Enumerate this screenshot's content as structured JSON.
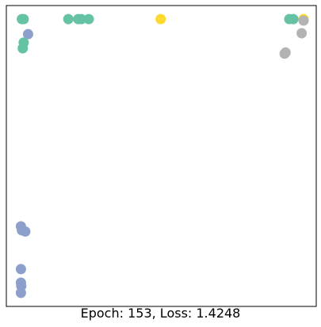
{
  "chart_data": {
    "type": "scatter",
    "caption": "Epoch: 153, Loss: 1.4248",
    "axes_visible": false,
    "grid": false,
    "colors": {
      "teal": "#66c2a5",
      "blue": "#8da0cb",
      "gray": "#b3b3b3",
      "yellow": "#ffd92f"
    },
    "xlim": [
      0,
      100
    ],
    "ylim": [
      0,
      100
    ],
    "points": [
      {
        "x": 5.0,
        "y": 95.5,
        "color": "teal"
      },
      {
        "x": 5.6,
        "y": 95.5,
        "color": "teal"
      },
      {
        "x": 20.0,
        "y": 95.5,
        "color": "teal"
      },
      {
        "x": 23.2,
        "y": 95.5,
        "color": "teal"
      },
      {
        "x": 24.2,
        "y": 95.5,
        "color": "teal"
      },
      {
        "x": 26.6,
        "y": 95.5,
        "color": "teal"
      },
      {
        "x": 49.8,
        "y": 95.5,
        "color": "yellow"
      },
      {
        "x": 7.0,
        "y": 90.5,
        "color": "blue"
      },
      {
        "x": 5.6,
        "y": 87.7,
        "color": "teal"
      },
      {
        "x": 5.3,
        "y": 85.8,
        "color": "teal"
      },
      {
        "x": 91.3,
        "y": 95.5,
        "color": "teal"
      },
      {
        "x": 92.6,
        "y": 95.5,
        "color": "teal"
      },
      {
        "x": 95.9,
        "y": 95.5,
        "color": "yellow"
      },
      {
        "x": 95.9,
        "y": 95.0,
        "color": "gray"
      },
      {
        "x": 95.3,
        "y": 90.8,
        "color": "gray"
      },
      {
        "x": 90.1,
        "y": 84.4,
        "color": "gray"
      },
      {
        "x": 89.8,
        "y": 84.0,
        "color": "gray"
      },
      {
        "x": 4.7,
        "y": 26.6,
        "color": "blue"
      },
      {
        "x": 5.0,
        "y": 25.3,
        "color": "blue"
      },
      {
        "x": 6.1,
        "y": 24.9,
        "color": "blue"
      },
      {
        "x": 4.7,
        "y": 12.4,
        "color": "blue"
      },
      {
        "x": 4.7,
        "y": 7.9,
        "color": "blue"
      },
      {
        "x": 4.8,
        "y": 6.8,
        "color": "blue"
      },
      {
        "x": 4.7,
        "y": 4.5,
        "color": "blue"
      }
    ]
  }
}
